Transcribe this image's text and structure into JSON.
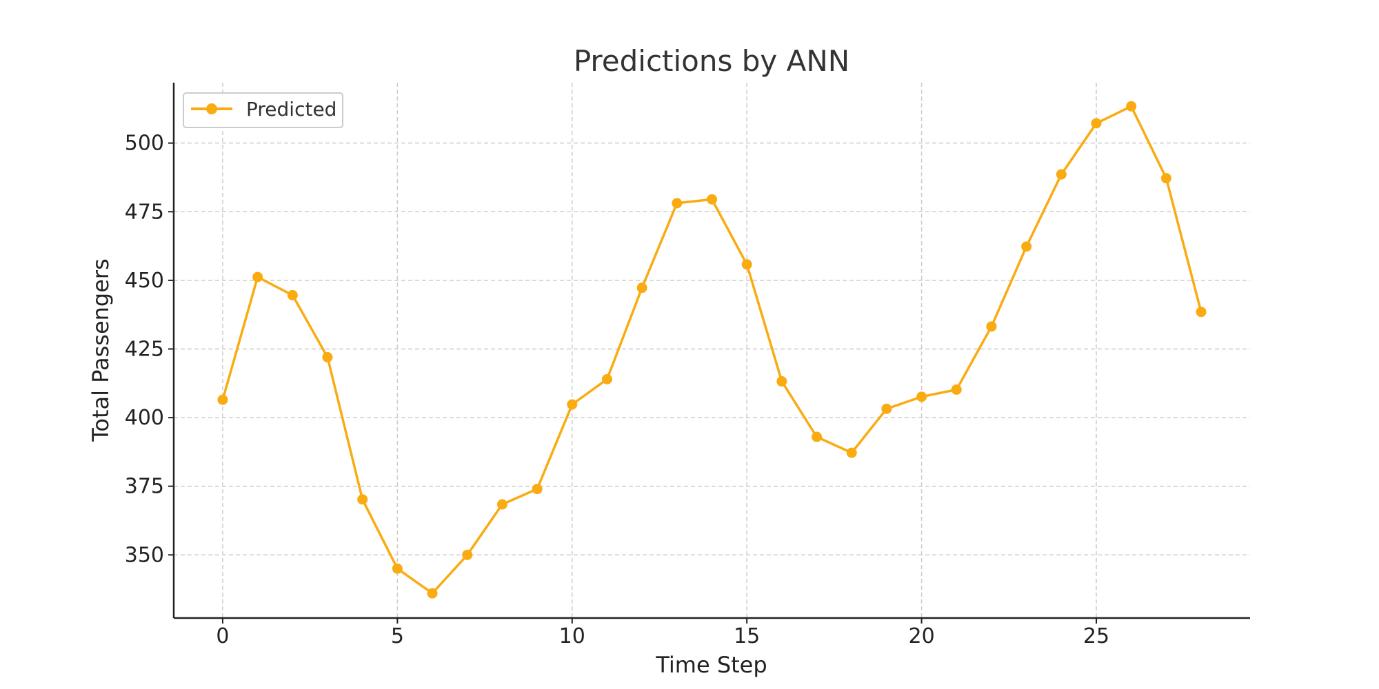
{
  "chart_data": {
    "type": "line",
    "title": "Predictions by ANN",
    "xlabel": "Time Step",
    "ylabel": "Total Passengers",
    "xlim": [
      -1.4,
      29.4
    ],
    "ylim": [
      327,
      522
    ],
    "xticks": [
      0,
      5,
      10,
      15,
      20,
      25
    ],
    "yticks": [
      350,
      375,
      400,
      425,
      450,
      475,
      500
    ],
    "grid": true,
    "legend_position": "top-left",
    "series": [
      {
        "name": "Predicted",
        "color": "#f9ab11",
        "marker": "circle",
        "x": [
          0,
          1,
          2,
          3,
          4,
          5,
          6,
          7,
          8,
          9,
          10,
          11,
          12,
          13,
          14,
          15,
          16,
          17,
          18,
          19,
          20,
          21,
          22,
          23,
          24,
          25,
          26,
          27,
          28
        ],
        "y": [
          406.5,
          451.2,
          444.6,
          422,
          370.2,
          345,
          336,
          350,
          368.4,
          374,
          404.8,
          414,
          447.3,
          478.1,
          479.5,
          455.8,
          413.2,
          393,
          387.2,
          403.2,
          407.6,
          410.2,
          433.2,
          462.3,
          488.6,
          507.2,
          513.4,
          487.2,
          438.5
        ]
      }
    ]
  }
}
